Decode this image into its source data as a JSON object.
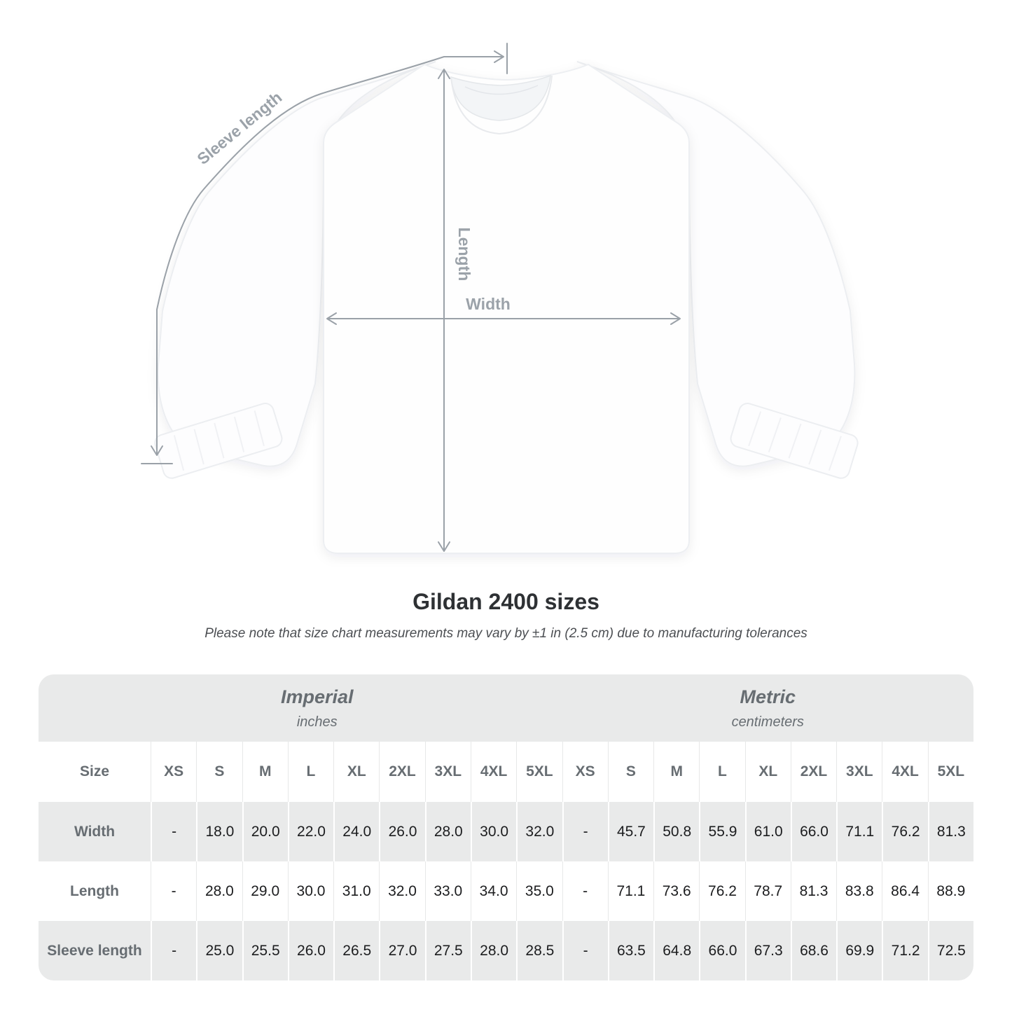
{
  "diagram": {
    "sleeve_length_label": "Sleeve length",
    "length_label": "Length",
    "width_label": "Width",
    "annotation_color": "#9aa1a8"
  },
  "title": "Gildan 2400 sizes",
  "subtitle": "Please note that size chart measurements may vary by ±1 in (2.5 cm) due to manufacturing tolerances",
  "table": {
    "groups": [
      {
        "name": "Imperial",
        "unit": "inches"
      },
      {
        "name": "Metric",
        "unit": "centimeters"
      }
    ],
    "size_label": "Size",
    "sizes": [
      "XS",
      "S",
      "M",
      "L",
      "XL",
      "2XL",
      "3XL",
      "4XL",
      "5XL"
    ],
    "rows": [
      {
        "label": "Width",
        "imperial": [
          "-",
          "18.0",
          "20.0",
          "22.0",
          "24.0",
          "26.0",
          "28.0",
          "30.0",
          "32.0"
        ],
        "metric": [
          "-",
          "45.7",
          "50.8",
          "55.9",
          "61.0",
          "66.0",
          "71.1",
          "76.2",
          "81.3"
        ]
      },
      {
        "label": "Length",
        "imperial": [
          "-",
          "28.0",
          "29.0",
          "30.0",
          "31.0",
          "32.0",
          "33.0",
          "34.0",
          "35.0"
        ],
        "metric": [
          "-",
          "71.1",
          "73.6",
          "76.2",
          "78.7",
          "81.3",
          "83.8",
          "86.4",
          "88.9"
        ]
      },
      {
        "label": "Sleeve length",
        "imperial": [
          "-",
          "25.0",
          "25.5",
          "26.0",
          "26.5",
          "27.0",
          "27.5",
          "28.0",
          "28.5"
        ],
        "metric": [
          "-",
          "63.5",
          "64.8",
          "66.0",
          "67.3",
          "68.6",
          "69.9",
          "71.2",
          "72.5"
        ]
      }
    ]
  },
  "colors": {
    "band_gray": "#e9eaea",
    "header_text": "#676d72",
    "value_text": "#1c1d1f",
    "title_text": "#2e3134"
  }
}
